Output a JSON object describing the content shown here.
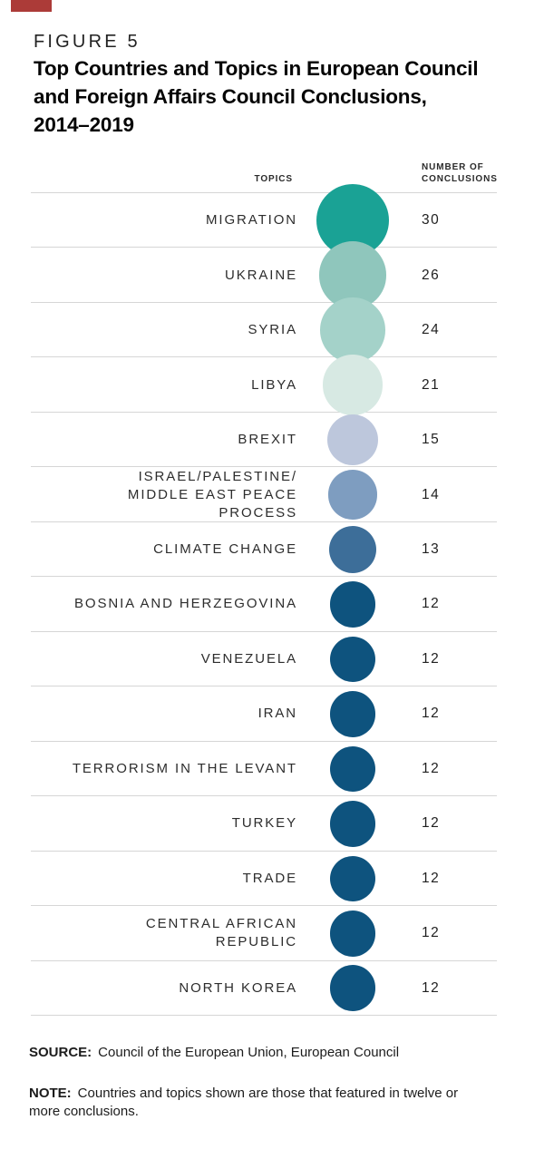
{
  "brand": {
    "accent_color": "#AC3B38"
  },
  "figure": {
    "kicker": "FIGURE 5",
    "title": "Top Countries and Topics in European Council\nand Foreign Affairs Council Conclusions,\n2014–2019"
  },
  "table": {
    "topics_header": "TOPICS",
    "conclusions_header": "NUMBER OF\nCONCLUSIONS",
    "rows": [
      {
        "topic": "MIGRATION",
        "conclusions": "30",
        "color": "#1AA295"
      },
      {
        "topic": "UKRAINE",
        "conclusions": "26",
        "color": "#8FC6BC"
      },
      {
        "topic": "SYRIA",
        "conclusions": "24",
        "color": "#A4D2C9"
      },
      {
        "topic": "LIBYA",
        "conclusions": "21",
        "color": "#D7E9E3"
      },
      {
        "topic": "BREXIT",
        "conclusions": "15",
        "color": "#BDC7DC"
      },
      {
        "topic": "ISRAEL/PALESTINE/\nMIDDLE EAST PEACE PROCESS",
        "conclusions": "14",
        "color": "#7E9DC0"
      },
      {
        "topic": "CLIMATE CHANGE",
        "conclusions": "13",
        "color": "#3D6E99"
      },
      {
        "topic": "BOSNIA AND HERZEGOVINA",
        "conclusions": "12",
        "color": "#0E537E"
      },
      {
        "topic": "VENEZUELA",
        "conclusions": "12",
        "color": "#0E537E"
      },
      {
        "topic": "IRAN",
        "conclusions": "12",
        "color": "#0E537E"
      },
      {
        "topic": "TERRORISM IN THE LEVANT",
        "conclusions": "12",
        "color": "#0E537E"
      },
      {
        "topic": "TURKEY",
        "conclusions": "12",
        "color": "#0E537E"
      },
      {
        "topic": "TRADE",
        "conclusions": "12",
        "color": "#0E537E"
      },
      {
        "topic": "CENTRAL AFRICAN\nREPUBLIC",
        "conclusions": "12",
        "color": "#0E537E"
      },
      {
        "topic": "NORTH KOREA",
        "conclusions": "12",
        "color": "#0E537E"
      }
    ]
  },
  "footer": {
    "source_label": "SOURCE:",
    "source_text": "Council of the European Union, European Council",
    "note_label": "NOTE:",
    "note_text": "Countries and topics shown are those that featured in twelve or more conclusions."
  },
  "chart_data": {
    "type": "table",
    "mark": "proportional-circles",
    "title": "Top Countries and Topics in European Council and Foreign Affairs Council Conclusions, 2014–2019",
    "figure_label": "FIGURE 5",
    "columns": [
      "TOPICS",
      "NUMBER OF CONCLUSIONS"
    ],
    "categories": [
      "MIGRATION",
      "UKRAINE",
      "SYRIA",
      "LIBYA",
      "BREXIT",
      "ISRAEL/PALESTINE/MIDDLE EAST PEACE PROCESS",
      "CLIMATE CHANGE",
      "BOSNIA AND HERZEGOVINA",
      "VENEZUELA",
      "IRAN",
      "TERRORISM IN THE LEVANT",
      "TURKEY",
      "TRADE",
      "CENTRAL AFRICAN REPUBLIC",
      "NORTH KOREA"
    ],
    "values": [
      30,
      26,
      24,
      21,
      15,
      14,
      13,
      12,
      12,
      12,
      12,
      12,
      12,
      12,
      12
    ],
    "bubble_colors": [
      "#1AA295",
      "#8FC6BC",
      "#A4D2C9",
      "#D7E9E3",
      "#BDC7DC",
      "#7E9DC0",
      "#3D6E99",
      "#0E537E",
      "#0E537E",
      "#0E537E",
      "#0E537E",
      "#0E537E",
      "#0E537E",
      "#0E537E",
      "#0E537E"
    ],
    "size_encoding": "circle area proportional to number of conclusions",
    "legend_position": "none",
    "grid": "horizontal row separators only"
  }
}
